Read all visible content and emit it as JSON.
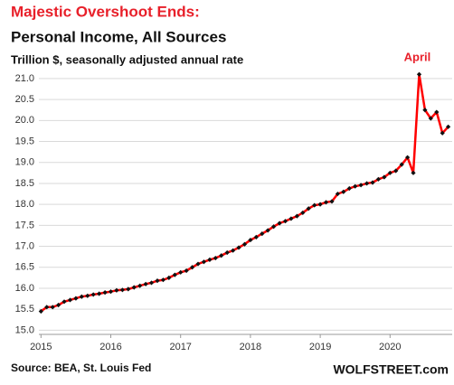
{
  "chart_data": {
    "type": "line",
    "title": "Majestic Overshoot Ends:",
    "subtitle": "Personal Income, All Sources",
    "y_label": "Trillion $, seasonally adjusted annual rate",
    "annotation": "April",
    "source": "Source: BEA, St. Louis Fed",
    "watermark": "WOLFSTREET.com",
    "x": [
      2015,
      2015.083,
      2015.167,
      2015.25,
      2015.333,
      2015.417,
      2015.5,
      2015.583,
      2015.667,
      2015.75,
      2015.833,
      2015.917,
      2016,
      2016.083,
      2016.167,
      2016.25,
      2016.333,
      2016.417,
      2016.5,
      2016.583,
      2016.667,
      2016.75,
      2016.833,
      2016.917,
      2017,
      2017.083,
      2017.167,
      2017.25,
      2017.333,
      2017.417,
      2017.5,
      2017.583,
      2017.667,
      2017.75,
      2017.833,
      2017.917,
      2018,
      2018.083,
      2018.167,
      2018.25,
      2018.333,
      2018.417,
      2018.5,
      2018.583,
      2018.667,
      2018.75,
      2018.833,
      2018.917,
      2019,
      2019.083,
      2019.167,
      2019.25,
      2019.333,
      2019.417,
      2019.5,
      2019.583,
      2019.667,
      2019.75,
      2019.833,
      2019.917,
      2020,
      2020.083,
      2020.167,
      2020.25,
      2020.333,
      2020.417,
      2020.5,
      2020.583,
      2020.667,
      2020.75,
      2020.833
    ],
    "series": [
      {
        "name": "Personal Income",
        "color": "#ff0000",
        "marker_color": "#111111",
        "values": [
          15.45,
          15.55,
          15.55,
          15.6,
          15.68,
          15.72,
          15.76,
          15.8,
          15.82,
          15.85,
          15.87,
          15.9,
          15.92,
          15.95,
          15.96,
          15.98,
          16.02,
          16.06,
          16.1,
          16.13,
          16.18,
          16.2,
          16.25,
          16.32,
          16.38,
          16.42,
          16.5,
          16.58,
          16.63,
          16.68,
          16.72,
          16.78,
          16.85,
          16.9,
          16.97,
          17.05,
          17.15,
          17.22,
          17.3,
          17.38,
          17.47,
          17.55,
          17.6,
          17.66,
          17.72,
          17.8,
          17.9,
          17.98,
          18.0,
          18.05,
          18.07,
          18.25,
          18.3,
          18.38,
          18.43,
          18.46,
          18.5,
          18.52,
          18.6,
          18.65,
          18.75,
          18.8,
          18.95,
          19.12,
          18.75,
          21.1,
          20.25,
          20.05,
          20.2,
          19.7,
          19.85
        ]
      }
    ],
    "annotation_index": 65,
    "xlim": [
      2014.97,
      2020.89
    ],
    "xticks": [
      2015,
      2016,
      2017,
      2018,
      2019,
      2020
    ],
    "ylim": [
      14.9,
      21.3
    ],
    "yticks": [
      {
        "value": 15,
        "label": "15.0"
      },
      {
        "value": 15.5,
        "label": "15.5"
      },
      {
        "value": 16,
        "label": "16.0"
      },
      {
        "value": 16.5,
        "label": "16.5"
      },
      {
        "value": 17,
        "label": "17.0"
      },
      {
        "value": 17.5,
        "label": "17.5"
      },
      {
        "value": 18,
        "label": "18.0"
      },
      {
        "value": 18.5,
        "label": "18.5"
      },
      {
        "value": 19,
        "label": "19.0"
      },
      {
        "value": 19.5,
        "label": "19.5"
      },
      {
        "value": 20,
        "label": "20.0"
      },
      {
        "value": 20.5,
        "label": "20.5"
      },
      {
        "value": 21,
        "label": "21.0"
      }
    ],
    "grid": true
  }
}
